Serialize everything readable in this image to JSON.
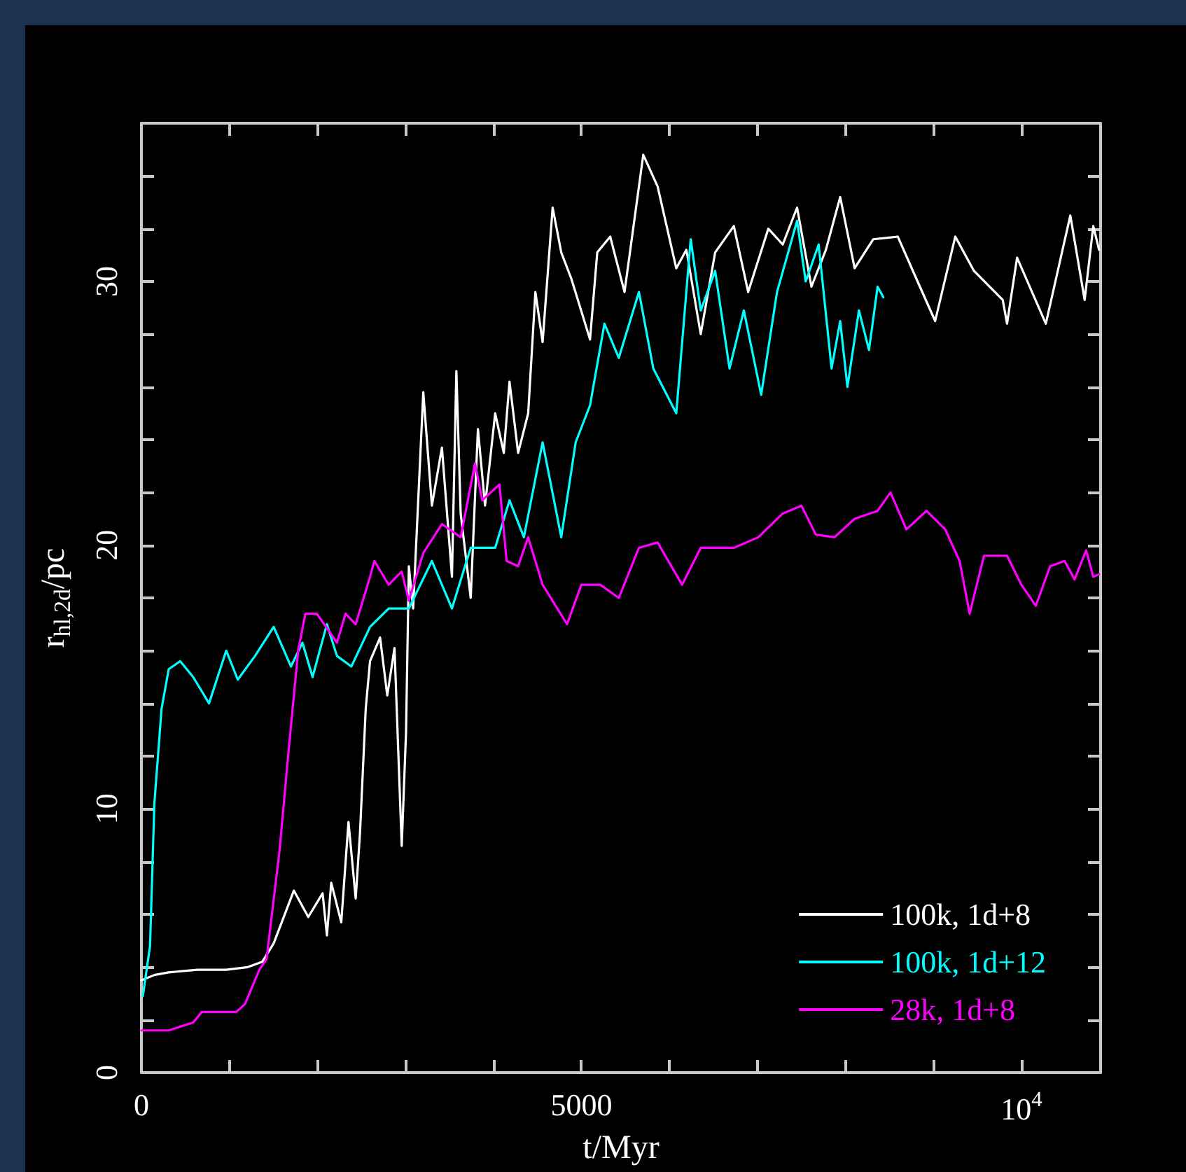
{
  "chart_data": {
    "type": "line",
    "xlabel": "t/Myr",
    "ylabel": "r$_{hl,2d}$/pc",
    "xlim": [
      0,
      10900
    ],
    "ylim": [
      0,
      36
    ],
    "xticks": [
      0,
      {
        "value": 1000,
        "label": null
      },
      {
        "value": 2000,
        "label": null
      },
      {
        "value": 3000,
        "label": null
      },
      {
        "value": 4000,
        "label": null
      },
      5000,
      {
        "value": 6000,
        "label": null
      },
      {
        "value": 7000,
        "label": null
      },
      {
        "value": 8000,
        "label": null
      },
      {
        "value": 9000,
        "label": null
      },
      {
        "value": 10000,
        "label": "10$^{4}$"
      }
    ],
    "yticks": [
      0,
      {
        "value": 2,
        "label": null
      },
      {
        "value": 4,
        "label": null
      },
      {
        "value": 6,
        "label": null
      },
      {
        "value": 8,
        "label": null
      },
      10,
      {
        "value": 12,
        "label": null
      },
      {
        "value": 14,
        "label": null
      },
      {
        "value": 16,
        "label": null
      },
      {
        "value": 18,
        "label": null
      },
      20,
      {
        "value": 22,
        "label": null
      },
      {
        "value": 24,
        "label": null
      },
      {
        "value": 26,
        "label": null
      },
      {
        "value": 28,
        "label": null
      },
      30,
      {
        "value": 32,
        "label": null
      },
      {
        "value": 34,
        "label": null
      }
    ],
    "grid": false,
    "legend": "bottom right",
    "marker": "none",
    "line_style": "solid",
    "series": [
      {
        "name": "100k, 1d+8",
        "color": "#ffffff",
        "x": [
          0,
          147,
          310,
          637,
          964,
          1209,
          1373,
          1503,
          1732,
          1896,
          2059,
          2108,
          2157,
          2271,
          2353,
          2435,
          2484,
          2549,
          2598,
          2712,
          2794,
          2876,
          2958,
          3007,
          3039,
          3088,
          3203,
          3301,
          3415,
          3529,
          3579,
          3628,
          3742,
          3824,
          3905,
          4020,
          4118,
          4183,
          4281,
          4395,
          4477,
          4559,
          4673,
          4771,
          4886,
          5098,
          5180,
          5327,
          5490,
          5703,
          5866,
          6078,
          6193,
          6356,
          6520,
          6732,
          6895,
          7124,
          7288,
          7451,
          7614,
          7778,
          7941,
          8105,
          8317,
          8595,
          8807,
          9020,
          9249,
          9461,
          9788,
          9837,
          9951,
          10278,
          10556,
          10719,
          10817,
          10883
        ],
        "values": [
          3.5,
          3.7,
          3.8,
          3.9,
          3.9,
          4.0,
          4.2,
          4.9,
          6.9,
          5.9,
          6.8,
          5.2,
          7.2,
          5.7,
          9.5,
          6.6,
          9.1,
          13.8,
          15.6,
          16.5,
          14.3,
          16.1,
          8.6,
          12.9,
          19.2,
          17.6,
          25.8,
          21.5,
          23.7,
          18.8,
          26.6,
          21.2,
          18.0,
          24.4,
          21.5,
          25.0,
          23.5,
          26.2,
          23.5,
          25.0,
          29.6,
          27.7,
          32.8,
          31.1,
          30.1,
          27.8,
          31.1,
          31.7,
          29.6,
          34.8,
          33.6,
          30.5,
          31.2,
          28.0,
          31.1,
          32.1,
          29.6,
          32.0,
          31.4,
          32.8,
          29.8,
          31.2,
          33.2,
          30.5,
          31.6,
          31.7,
          30.1,
          28.5,
          31.7,
          30.4,
          29.3,
          28.4,
          30.9,
          28.4,
          32.5,
          29.3,
          32.1,
          31.2
        ]
      },
      {
        "name": "100k, 1d+12",
        "color": "#00ffff",
        "x": [
          16,
          98,
          147,
          229,
          310,
          441,
          588,
          768,
          964,
          1095,
          1291,
          1503,
          1699,
          1830,
          1945,
          2108,
          2222,
          2386,
          2598,
          2810,
          3039,
          3301,
          3529,
          3742,
          4020,
          4183,
          4346,
          4559,
          4771,
          4935,
          5098,
          5262,
          5425,
          5654,
          5817,
          6078,
          6242,
          6356,
          6520,
          6683,
          6846,
          7043,
          7223,
          7451,
          7549,
          7696,
          7843,
          7941,
          8023,
          8154,
          8268,
          8366,
          8431
        ],
        "values": [
          2.9,
          4.8,
          10.2,
          13.8,
          15.3,
          15.6,
          15.0,
          14.0,
          16.0,
          14.9,
          15.8,
          16.9,
          15.4,
          16.3,
          15.0,
          17.0,
          15.8,
          15.4,
          16.9,
          17.6,
          17.6,
          19.4,
          17.6,
          19.9,
          19.9,
          21.7,
          20.3,
          23.9,
          20.3,
          23.9,
          25.3,
          28.4,
          27.1,
          29.6,
          26.7,
          25.0,
          31.6,
          28.9,
          30.4,
          26.7,
          28.9,
          25.7,
          29.6,
          32.3,
          30.0,
          31.4,
          26.7,
          28.5,
          26.0,
          28.9,
          27.4,
          29.8,
          29.4
        ]
      },
      {
        "name": "28k, 1d+8",
        "color": "#ff00ff",
        "x": [
          0,
          310,
          588,
          686,
          1078,
          1177,
          1340,
          1422,
          1569,
          1667,
          1781,
          1863,
          1994,
          2222,
          2320,
          2435,
          2598,
          2647,
          2810,
          2958,
          3039,
          3203,
          3415,
          3628,
          3791,
          3873,
          4069,
          4150,
          4281,
          4395,
          4559,
          4837,
          5000,
          5213,
          5425,
          5654,
          5866,
          6144,
          6356,
          6732,
          7010,
          7288,
          7500,
          7664,
          7876,
          8105,
          8366,
          8513,
          8693,
          8921,
          9134,
          9298,
          9412,
          9575,
          9837,
          10000,
          10164,
          10327,
          10491,
          10605,
          10736,
          10817,
          10883
        ],
        "values": [
          1.6,
          1.6,
          1.9,
          2.3,
          2.3,
          2.6,
          3.9,
          4.3,
          8.4,
          12.0,
          16.0,
          17.4,
          17.4,
          16.3,
          17.4,
          17.0,
          18.8,
          19.4,
          18.5,
          19.0,
          17.9,
          19.7,
          20.8,
          20.3,
          23.1,
          21.7,
          22.3,
          19.4,
          19.2,
          20.3,
          18.5,
          17.0,
          18.5,
          18.5,
          18.0,
          19.9,
          20.1,
          18.5,
          19.9,
          19.9,
          20.3,
          21.2,
          21.5,
          20.4,
          20.3,
          21.0,
          21.3,
          22.0,
          20.6,
          21.3,
          20.6,
          19.4,
          17.4,
          19.6,
          19.6,
          18.5,
          17.7,
          19.2,
          19.4,
          18.7,
          19.8,
          18.8,
          18.9
        ]
      }
    ]
  }
}
